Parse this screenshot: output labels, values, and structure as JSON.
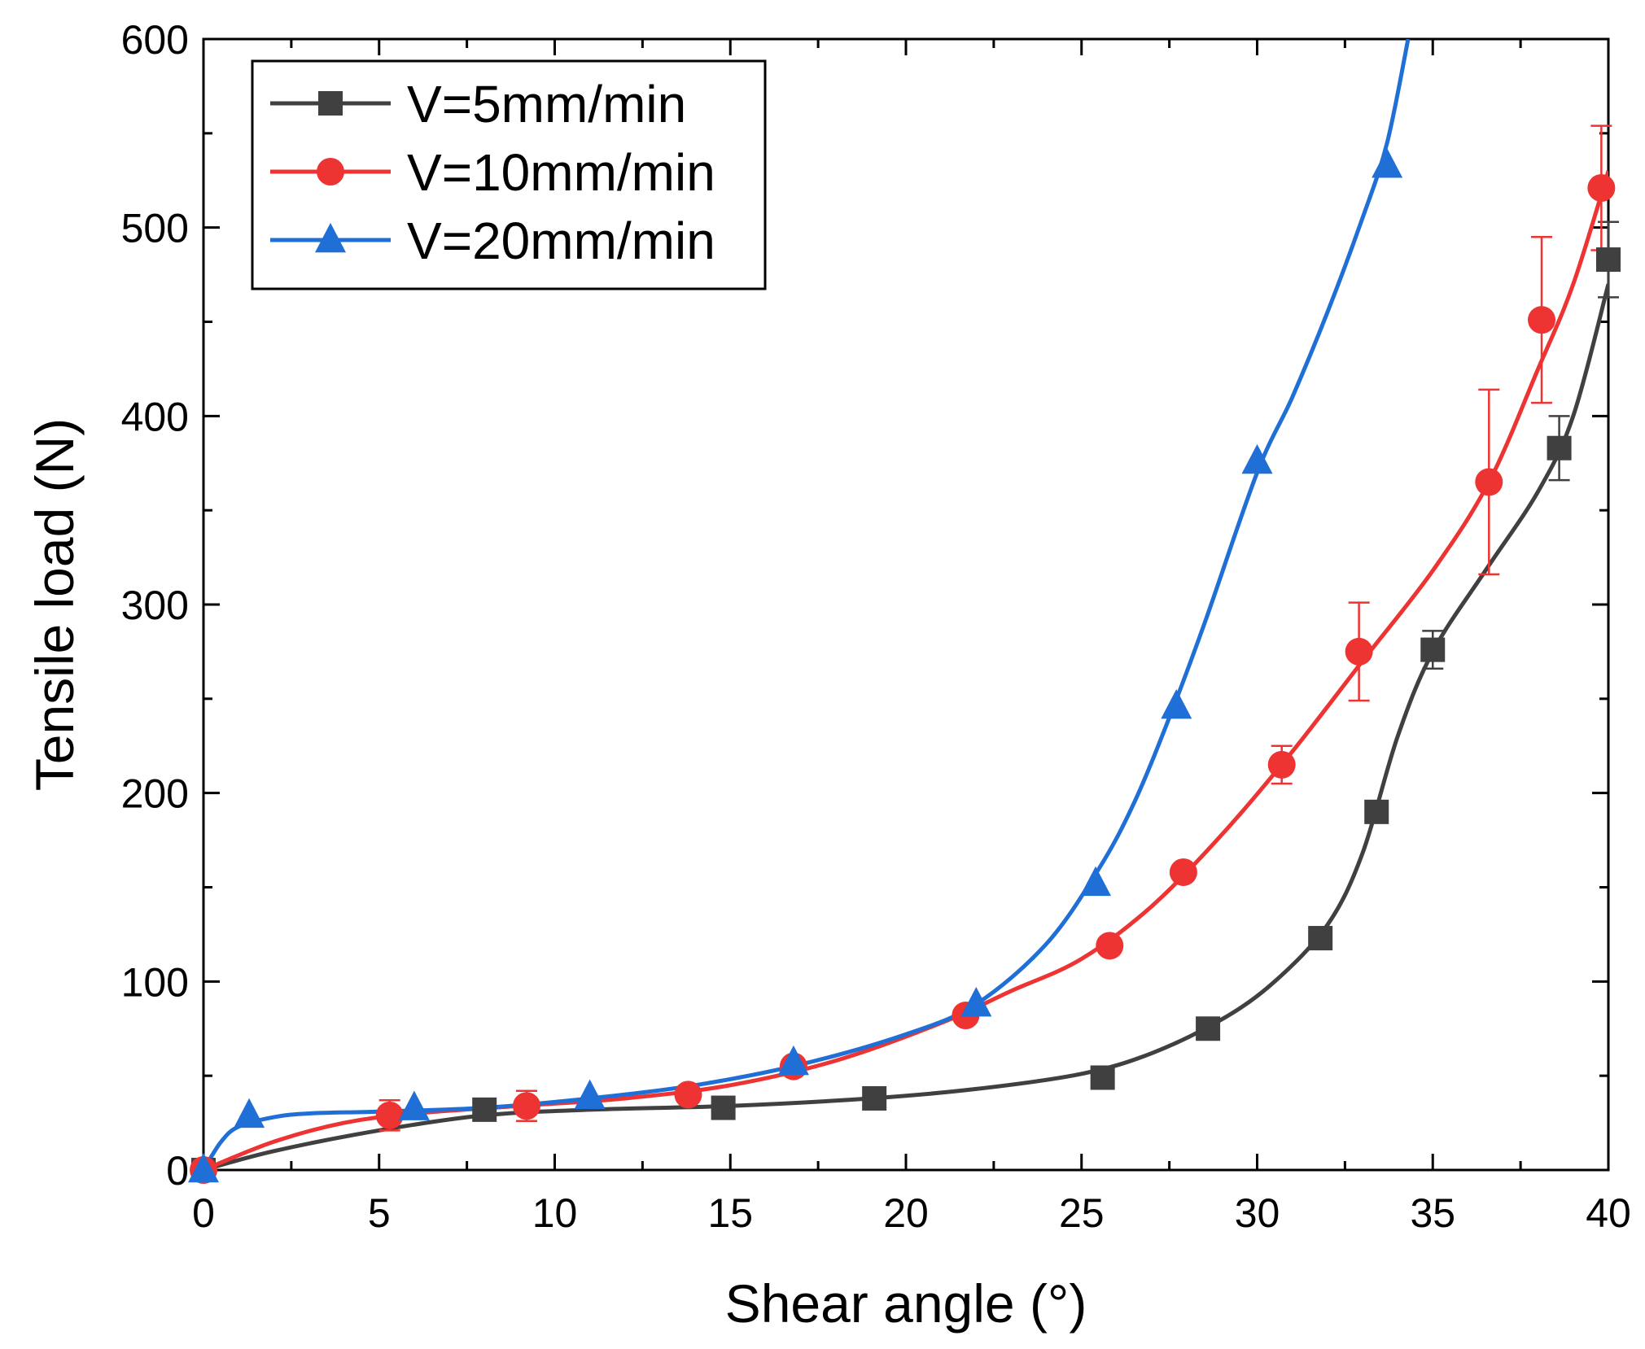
{
  "chart_data": {
    "type": "line",
    "title": "",
    "xlabel": "Shear angle (°)",
    "ylabel": "Tensile load (N)",
    "xlim": [
      0,
      40
    ],
    "ylim": [
      0,
      600
    ],
    "xticks": [
      0,
      5,
      10,
      15,
      20,
      25,
      30,
      35,
      40
    ],
    "yticks": [
      0,
      100,
      200,
      300,
      400,
      500,
      600
    ],
    "xtick_labels": [
      "0",
      "5",
      "10",
      "15",
      "20",
      "25",
      "30",
      "35",
      "40"
    ],
    "ytick_labels": [
      "0",
      "100",
      "200",
      "300",
      "400",
      "500",
      "600"
    ],
    "legend_position": "top-left",
    "grid": false,
    "series": [
      {
        "name": "V=5mm/min",
        "color": "#404040",
        "marker": "square",
        "points": [
          {
            "x": 0,
            "y": 0
          },
          {
            "x": 8,
            "y": 32
          },
          {
            "x": 14.8,
            "y": 33
          },
          {
            "x": 19.1,
            "y": 38
          },
          {
            "x": 25.6,
            "y": 49
          },
          {
            "x": 28.6,
            "y": 75
          },
          {
            "x": 31.8,
            "y": 123
          },
          {
            "x": 33.4,
            "y": 190
          },
          {
            "x": 35.0,
            "y": 276,
            "err": 10
          },
          {
            "x": 38.6,
            "y": 383,
            "err": 17
          },
          {
            "x": 40.0,
            "y": 483,
            "err": 20
          }
        ],
        "curve": [
          [
            0,
            0
          ],
          [
            2,
            10
          ],
          [
            5,
            21
          ],
          [
            8,
            29
          ],
          [
            11,
            32
          ],
          [
            15,
            34
          ],
          [
            19,
            38
          ],
          [
            22,
            43
          ],
          [
            25,
            51
          ],
          [
            27,
            62
          ],
          [
            29,
            80
          ],
          [
            30.5,
            100
          ],
          [
            32,
            130
          ],
          [
            33,
            168
          ],
          [
            34,
            230
          ],
          [
            35,
            275
          ],
          [
            36.5,
            318
          ],
          [
            38,
            360
          ],
          [
            39,
            400
          ],
          [
            40,
            470
          ]
        ]
      },
      {
        "name": "V=10mm/min",
        "color": "#ee3333",
        "marker": "circle",
        "points": [
          {
            "x": 0,
            "y": 0
          },
          {
            "x": 5.3,
            "y": 29,
            "err": 8
          },
          {
            "x": 9.2,
            "y": 34,
            "err": 8
          },
          {
            "x": 13.8,
            "y": 40
          },
          {
            "x": 16.8,
            "y": 55
          },
          {
            "x": 21.7,
            "y": 82
          },
          {
            "x": 25.8,
            "y": 119
          },
          {
            "x": 27.9,
            "y": 158
          },
          {
            "x": 30.7,
            "y": 215,
            "err": 10
          },
          {
            "x": 32.9,
            "y": 275,
            "err": 26
          },
          {
            "x": 36.6,
            "y": 365,
            "err": 49
          },
          {
            "x": 38.1,
            "y": 451,
            "err": 44
          },
          {
            "x": 39.8,
            "y": 521,
            "err": 33
          }
        ],
        "curve": [
          [
            0,
            0
          ],
          [
            2,
            15
          ],
          [
            4,
            25
          ],
          [
            6,
            30
          ],
          [
            9,
            34
          ],
          [
            12,
            38
          ],
          [
            15,
            45
          ],
          [
            18,
            58
          ],
          [
            21,
            78
          ],
          [
            23,
            95
          ],
          [
            25,
            112
          ],
          [
            27,
            140
          ],
          [
            29,
            178
          ],
          [
            31,
            222
          ],
          [
            33,
            270
          ],
          [
            35,
            318
          ],
          [
            36.6,
            365
          ],
          [
            38,
            425
          ],
          [
            39,
            470
          ],
          [
            40,
            530
          ]
        ]
      },
      {
        "name": "V=20mm/min",
        "color": "#1f6fd6",
        "marker": "triangle",
        "points": [
          {
            "x": 0,
            "y": 0
          },
          {
            "x": 1.3,
            "y": 29
          },
          {
            "x": 6.0,
            "y": 33
          },
          {
            "x": 11.0,
            "y": 39
          },
          {
            "x": 16.8,
            "y": 57
          },
          {
            "x": 22.0,
            "y": 88
          },
          {
            "x": 25.4,
            "y": 152
          },
          {
            "x": 27.7,
            "y": 246
          },
          {
            "x": 30.0,
            "y": 376
          },
          {
            "x": 33.7,
            "y": 533
          }
        ],
        "curve": [
          [
            0,
            0
          ],
          [
            0.5,
            15
          ],
          [
            1,
            23
          ],
          [
            2,
            28
          ],
          [
            3,
            30
          ],
          [
            5,
            31
          ],
          [
            8,
            33
          ],
          [
            11,
            38
          ],
          [
            14,
            45
          ],
          [
            17,
            56
          ],
          [
            20,
            72
          ],
          [
            22,
            88
          ],
          [
            24,
            120
          ],
          [
            25.5,
            160
          ],
          [
            26.5,
            195
          ],
          [
            27.5,
            240
          ],
          [
            28.5,
            290
          ],
          [
            30,
            370
          ],
          [
            31,
            410
          ],
          [
            32,
            455
          ],
          [
            33,
            505
          ],
          [
            33.7,
            545
          ],
          [
            34.3,
            600
          ]
        ]
      }
    ]
  }
}
